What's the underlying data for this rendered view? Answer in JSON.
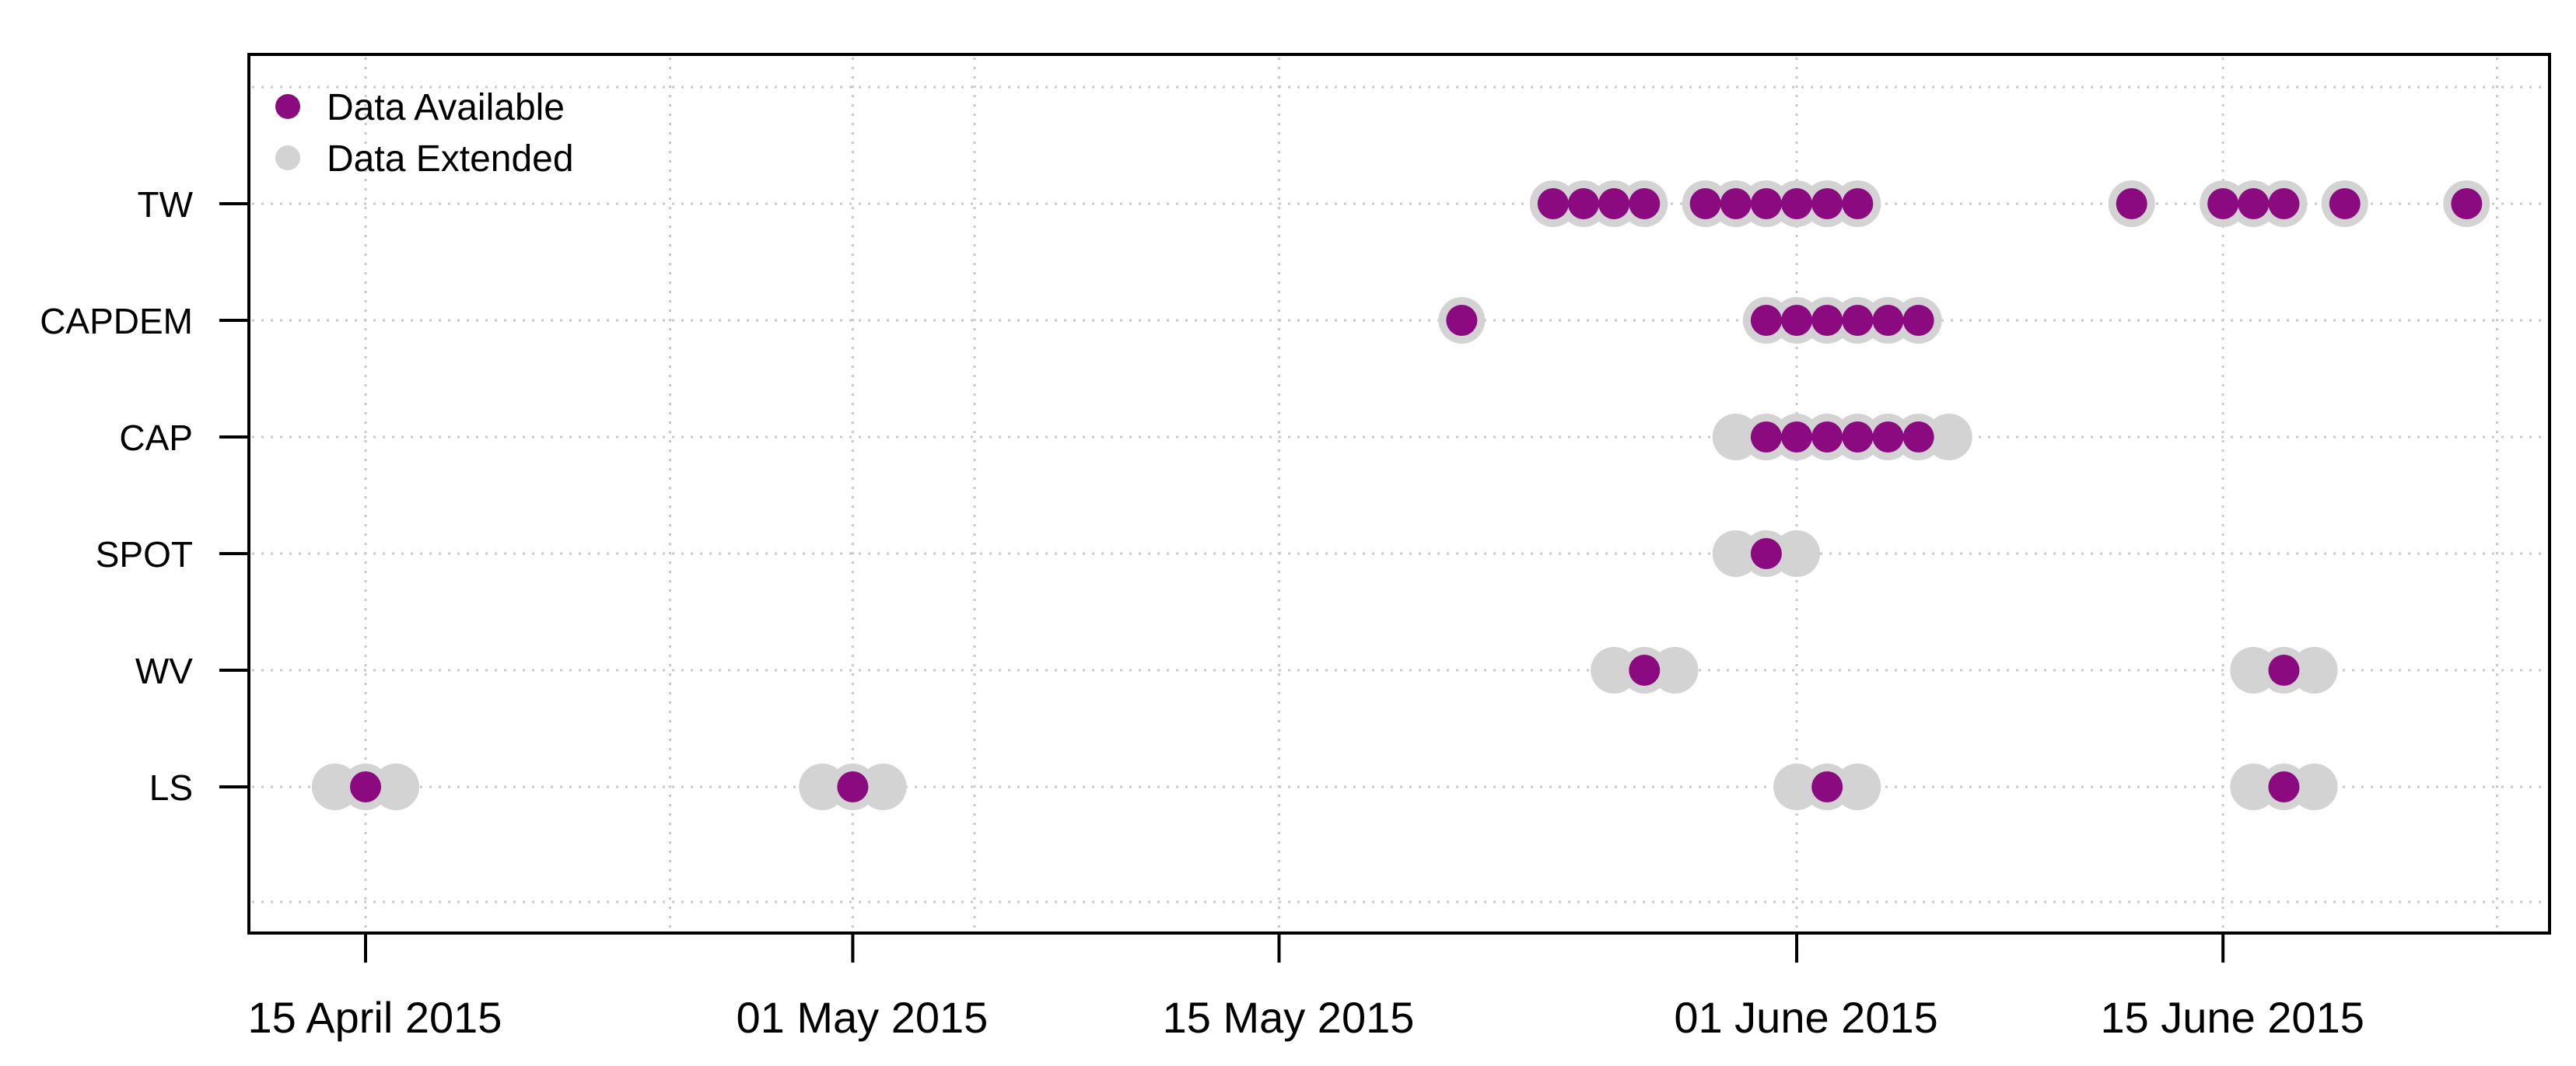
{
  "chart_data": {
    "type": "scatter",
    "title": "",
    "xlabel": "",
    "ylabel": "",
    "x_axis": {
      "kind": "date",
      "range": [
        "2015-04-11",
        "2015-06-24"
      ],
      "ticks": [
        {
          "date": "2015-04-15",
          "label": "15 April 2015"
        },
        {
          "date": "2015-05-01",
          "label": "01 May 2015"
        },
        {
          "date": "2015-05-15",
          "label": "15 May 2015"
        },
        {
          "date": "2015-06-01",
          "label": "01 June 2015"
        },
        {
          "date": "2015-06-15",
          "label": "15 June 2015"
        }
      ],
      "minor_grid": [
        "2015-04-25",
        "2015-05-05",
        "2015-06-24"
      ]
    },
    "categories": [
      "TW",
      "CAPDEM",
      "CAP",
      "SPOT",
      "WV",
      "LS"
    ],
    "grid": true,
    "legend": {
      "position": "top-left",
      "entries": [
        {
          "label": "Data Available",
          "color": "#8B0A80"
        },
        {
          "label": "Data Extended",
          "color": "#D3D3D3"
        }
      ]
    },
    "series": [
      {
        "name": "Data Extended",
        "color": "#D3D3D3",
        "points": [
          {
            "y": "TW",
            "x": [
              "2015-05-24",
              "2015-05-25",
              "2015-05-26",
              "2015-05-27",
              "2015-05-29",
              "2015-05-30",
              "2015-05-31",
              "2015-06-01",
              "2015-06-02",
              "2015-06-03",
              "2015-06-12",
              "2015-06-15",
              "2015-06-16",
              "2015-06-17",
              "2015-06-19",
              "2015-06-23"
            ]
          },
          {
            "y": "CAPDEM",
            "x": [
              "2015-05-21",
              "2015-05-31",
              "2015-06-01",
              "2015-06-02",
              "2015-06-03",
              "2015-06-04",
              "2015-06-05"
            ]
          },
          {
            "y": "CAP",
            "x": [
              "2015-05-30",
              "2015-05-31",
              "2015-06-01",
              "2015-06-02",
              "2015-06-03",
              "2015-06-04",
              "2015-06-05",
              "2015-06-06"
            ]
          },
          {
            "y": "SPOT",
            "x": [
              "2015-05-30",
              "2015-05-31",
              "2015-06-01"
            ]
          },
          {
            "y": "WV",
            "x": [
              "2015-05-26",
              "2015-05-27",
              "2015-05-28",
              "2015-06-16",
              "2015-06-17",
              "2015-06-18"
            ]
          },
          {
            "y": "LS",
            "x": [
              "2015-04-14",
              "2015-04-15",
              "2015-04-16",
              "2015-04-30",
              "2015-05-01",
              "2015-05-02",
              "2015-06-01",
              "2015-06-02",
              "2015-06-03",
              "2015-06-16",
              "2015-06-17",
              "2015-06-18"
            ]
          }
        ]
      },
      {
        "name": "Data Available",
        "color": "#8B0A80",
        "points": [
          {
            "y": "TW",
            "x": [
              "2015-05-24",
              "2015-05-25",
              "2015-05-26",
              "2015-05-27",
              "2015-05-29",
              "2015-05-30",
              "2015-05-31",
              "2015-06-01",
              "2015-06-02",
              "2015-06-03",
              "2015-06-12",
              "2015-06-15",
              "2015-06-16",
              "2015-06-17",
              "2015-06-19",
              "2015-06-23"
            ]
          },
          {
            "y": "CAPDEM",
            "x": [
              "2015-05-21",
              "2015-05-31",
              "2015-06-01",
              "2015-06-02",
              "2015-06-03",
              "2015-06-04",
              "2015-06-05"
            ]
          },
          {
            "y": "CAP",
            "x": [
              "2015-05-31",
              "2015-06-01",
              "2015-06-02",
              "2015-06-03",
              "2015-06-04",
              "2015-06-05"
            ]
          },
          {
            "y": "SPOT",
            "x": [
              "2015-05-31"
            ]
          },
          {
            "y": "WV",
            "x": [
              "2015-05-27",
              "2015-06-17"
            ]
          },
          {
            "y": "LS",
            "x": [
              "2015-04-15",
              "2015-05-01",
              "2015-06-02",
              "2015-06-17"
            ]
          }
        ]
      }
    ]
  }
}
